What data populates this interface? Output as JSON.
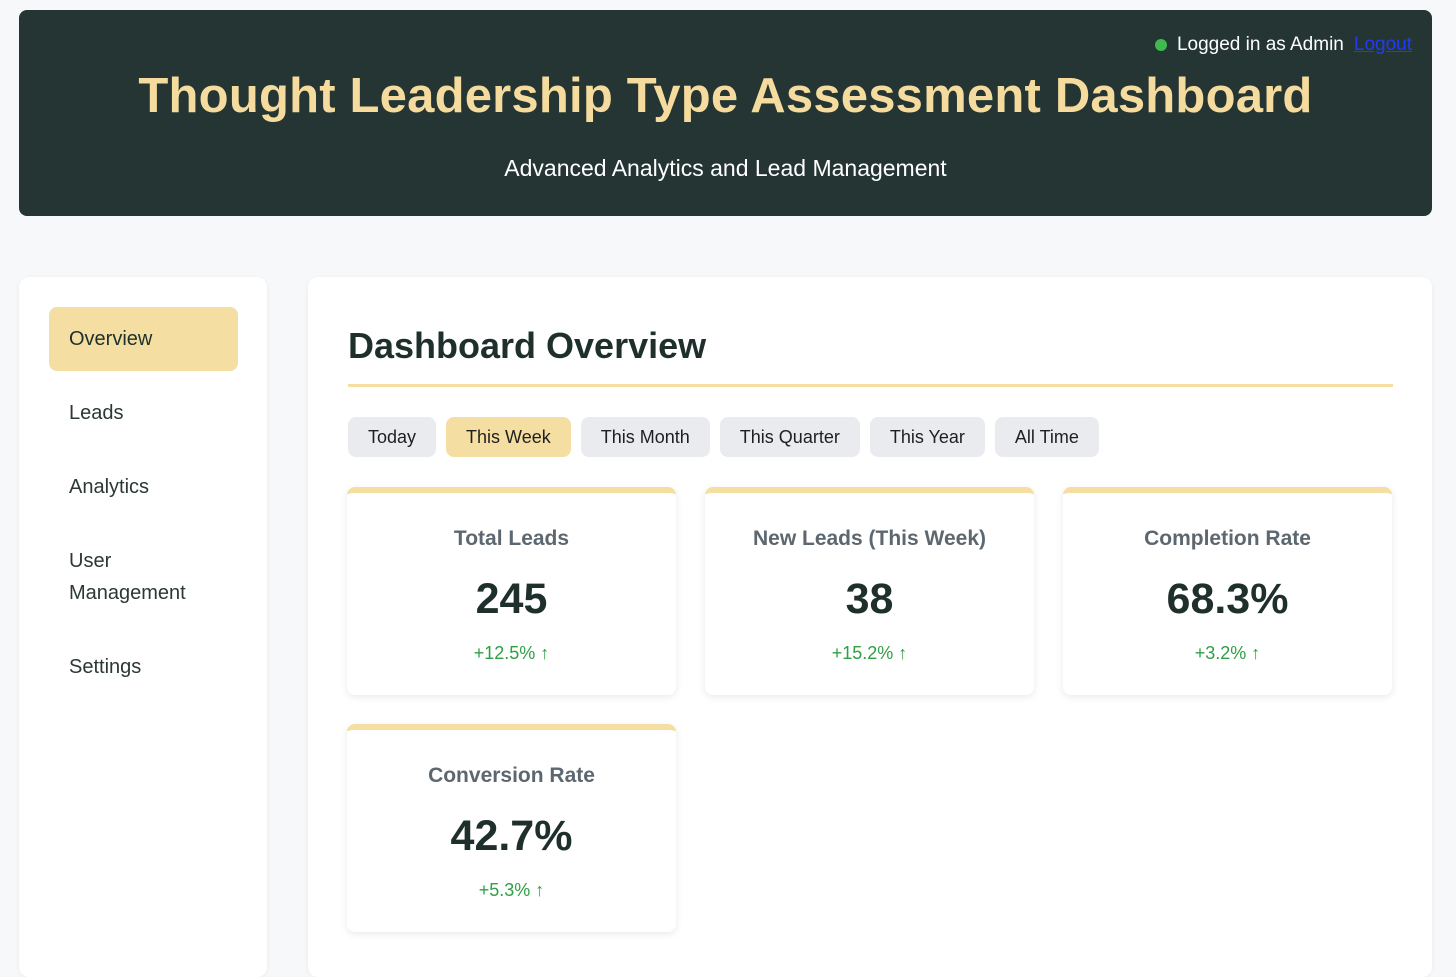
{
  "header": {
    "title": "Thought Leadership Type Assessment Dashboard",
    "subtitle": "Advanced Analytics and Lead Management",
    "status_text": "Logged in as Admin",
    "logout_label": "Logout"
  },
  "sidebar": {
    "items": [
      {
        "label": "Overview",
        "active": true
      },
      {
        "label": "Leads",
        "active": false
      },
      {
        "label": "Analytics",
        "active": false
      },
      {
        "label": "User Management",
        "active": false
      },
      {
        "label": "Settings",
        "active": false
      }
    ]
  },
  "main": {
    "title": "Dashboard Overview",
    "filters": [
      {
        "label": "Today",
        "active": false
      },
      {
        "label": "This Week",
        "active": true
      },
      {
        "label": "This Month",
        "active": false
      },
      {
        "label": "This Quarter",
        "active": false
      },
      {
        "label": "This Year",
        "active": false
      },
      {
        "label": "All Time",
        "active": false
      }
    ],
    "stats": [
      {
        "label": "Total Leads",
        "value": "245",
        "change": "+12.5% ↑"
      },
      {
        "label": "New Leads (This Week)",
        "value": "38",
        "change": "+15.2% ↑"
      },
      {
        "label": "Completion Rate",
        "value": "68.3%",
        "change": "+3.2% ↑"
      },
      {
        "label": "Conversion Rate",
        "value": "42.7%",
        "change": "+5.3% ↑"
      }
    ]
  },
  "colors": {
    "header_bg": "#243533",
    "accent": "#f5dea2",
    "title_gold": "#f5dc9e",
    "positive": "#2ea043",
    "online_dot": "#3fb950"
  }
}
